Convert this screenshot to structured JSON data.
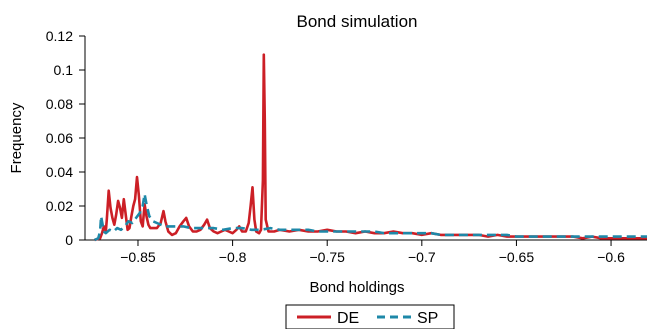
{
  "chart_data": {
    "type": "line",
    "title": "Bond simulation",
    "xlabel": "Bond holdings",
    "ylabel": "Frequency",
    "xlim": [
      -0.878,
      -0.581
    ],
    "ylim": [
      0,
      0.12
    ],
    "x_ticks": [
      -0.85,
      -0.8,
      -0.75,
      -0.7,
      -0.65,
      -0.6
    ],
    "x_tick_labels": [
      "−0.85",
      "−0.8",
      "−0.75",
      "−0.7",
      "−0.65",
      "−0.6"
    ],
    "y_ticks": [
      0,
      0.02,
      0.04,
      0.06,
      0.08,
      0.1,
      0.12
    ],
    "y_tick_labels": [
      "0",
      "0.02",
      "0.04",
      "0.06",
      "0.08",
      "0.1",
      "0.12"
    ],
    "grid": false,
    "legend_position": "bottom-center",
    "series": [
      {
        "name": "DE",
        "color": "#cc1f26",
        "style": "solid",
        "points": [
          [
            -0.873,
            0
          ],
          [
            -0.87,
            0.001
          ],
          [
            -0.869,
            0.004
          ],
          [
            -0.868,
            0.008
          ],
          [
            -0.867,
            0.005
          ],
          [
            -0.8665,
            0.012
          ],
          [
            -0.8655,
            0.029
          ],
          [
            -0.8645,
            0.019
          ],
          [
            -0.8635,
            0.013
          ],
          [
            -0.8625,
            0.009
          ],
          [
            -0.8615,
            0.015
          ],
          [
            -0.8605,
            0.023
          ],
          [
            -0.8595,
            0.019
          ],
          [
            -0.8585,
            0.013
          ],
          [
            -0.8575,
            0.024
          ],
          [
            -0.8565,
            0.015
          ],
          [
            -0.8555,
            0.006
          ],
          [
            -0.8545,
            0.007
          ],
          [
            -0.8535,
            0.014
          ],
          [
            -0.8525,
            0.02
          ],
          [
            -0.8515,
            0.024
          ],
          [
            -0.8505,
            0.037
          ],
          [
            -0.8495,
            0.026
          ],
          [
            -0.8485,
            0.011
          ],
          [
            -0.8475,
            0.008
          ],
          [
            -0.8465,
            0.021
          ],
          [
            -0.8455,
            0.014
          ],
          [
            -0.8445,
            0.009
          ],
          [
            -0.8435,
            0.007
          ],
          [
            -0.842,
            0.007
          ],
          [
            -0.84,
            0.007
          ],
          [
            -0.838,
            0.01
          ],
          [
            -0.8365,
            0.017
          ],
          [
            -0.8355,
            0.011
          ],
          [
            -0.834,
            0.005
          ],
          [
            -0.832,
            0.003
          ],
          [
            -0.83,
            0.004
          ],
          [
            -0.828,
            0.008
          ],
          [
            -0.826,
            0.011
          ],
          [
            -0.8245,
            0.013
          ],
          [
            -0.823,
            0.008
          ],
          [
            -0.821,
            0.005
          ],
          [
            -0.819,
            0.005
          ],
          [
            -0.817,
            0.006
          ],
          [
            -0.815,
            0.009
          ],
          [
            -0.8135,
            0.012
          ],
          [
            -0.812,
            0.007
          ],
          [
            -0.81,
            0.005
          ],
          [
            -0.808,
            0.004
          ],
          [
            -0.806,
            0.005
          ],
          [
            -0.804,
            0.006
          ],
          [
            -0.802,
            0.005
          ],
          [
            -0.8,
            0.004
          ],
          [
            -0.798,
            0.006
          ],
          [
            -0.7965,
            0.008
          ],
          [
            -0.795,
            0.005
          ],
          [
            -0.793,
            0.005
          ],
          [
            -0.7915,
            0.01
          ],
          [
            -0.7905,
            0.02
          ],
          [
            -0.7895,
            0.031
          ],
          [
            -0.7885,
            0.012
          ],
          [
            -0.7875,
            0.005
          ],
          [
            -0.786,
            0.004
          ],
          [
            -0.785,
            0.006
          ],
          [
            -0.784,
            0.035
          ],
          [
            -0.7835,
            0.109
          ],
          [
            -0.783,
            0.07
          ],
          [
            -0.7825,
            0.012
          ],
          [
            -0.781,
            0.005
          ],
          [
            -0.778,
            0.005
          ],
          [
            -0.775,
            0.006
          ],
          [
            -0.77,
            0.005
          ],
          [
            -0.765,
            0.006
          ],
          [
            -0.76,
            0.005
          ],
          [
            -0.755,
            0.005
          ],
          [
            -0.75,
            0.006
          ],
          [
            -0.745,
            0.005
          ],
          [
            -0.74,
            0.005
          ],
          [
            -0.735,
            0.004
          ],
          [
            -0.73,
            0.005
          ],
          [
            -0.725,
            0.004
          ],
          [
            -0.72,
            0.004
          ],
          [
            -0.715,
            0.005
          ],
          [
            -0.71,
            0.004
          ],
          [
            -0.705,
            0.004
          ],
          [
            -0.7,
            0.003
          ],
          [
            -0.695,
            0.004
          ],
          [
            -0.69,
            0.003
          ],
          [
            -0.685,
            0.003
          ],
          [
            -0.68,
            0.003
          ],
          [
            -0.675,
            0.003
          ],
          [
            -0.67,
            0.003
          ],
          [
            -0.665,
            0.002
          ],
          [
            -0.66,
            0.003
          ],
          [
            -0.655,
            0.002
          ],
          [
            -0.65,
            0.002
          ],
          [
            -0.645,
            0.002
          ],
          [
            -0.64,
            0.002
          ],
          [
            -0.635,
            0.002
          ],
          [
            -0.63,
            0.002
          ],
          [
            -0.625,
            0.002
          ],
          [
            -0.62,
            0.002
          ],
          [
            -0.615,
            0.001
          ],
          [
            -0.61,
            0.002
          ],
          [
            -0.605,
            0.001
          ],
          [
            -0.6,
            0.001
          ],
          [
            -0.595,
            0.001
          ],
          [
            -0.59,
            0.001
          ],
          [
            -0.585,
            0.001
          ],
          [
            -0.581,
            0.001
          ]
        ]
      },
      {
        "name": "SP",
        "color": "#1e88a8",
        "style": "dashed",
        "points": [
          [
            -0.873,
            0
          ],
          [
            -0.871,
            0.001
          ],
          [
            -0.87,
            0.005
          ],
          [
            -0.8695,
            0.014
          ],
          [
            -0.869,
            0.011
          ],
          [
            -0.868,
            0.005
          ],
          [
            -0.867,
            0.004
          ],
          [
            -0.865,
            0.006
          ],
          [
            -0.863,
            0.005
          ],
          [
            -0.861,
            0.007
          ],
          [
            -0.859,
            0.006
          ],
          [
            -0.857,
            0.008
          ],
          [
            -0.855,
            0.011
          ],
          [
            -0.853,
            0.01
          ],
          [
            -0.851,
            0.013
          ],
          [
            -0.849,
            0.016
          ],
          [
            -0.8475,
            0.02
          ],
          [
            -0.8465,
            0.027
          ],
          [
            -0.8455,
            0.021
          ],
          [
            -0.844,
            0.014
          ],
          [
            -0.842,
            0.011
          ],
          [
            -0.84,
            0.01
          ],
          [
            -0.838,
            0.009
          ],
          [
            -0.836,
            0.008
          ],
          [
            -0.834,
            0.008
          ],
          [
            -0.83,
            0.008
          ],
          [
            -0.826,
            0.008
          ],
          [
            -0.822,
            0.007
          ],
          [
            -0.818,
            0.007
          ],
          [
            -0.814,
            0.007
          ],
          [
            -0.81,
            0.007
          ],
          [
            -0.805,
            0.006
          ],
          [
            -0.8,
            0.007
          ],
          [
            -0.795,
            0.007
          ],
          [
            -0.79,
            0.006
          ],
          [
            -0.785,
            0.006
          ],
          [
            -0.78,
            0.007
          ],
          [
            -0.775,
            0.006
          ],
          [
            -0.77,
            0.006
          ],
          [
            -0.765,
            0.006
          ],
          [
            -0.76,
            0.006
          ],
          [
            -0.755,
            0.005
          ],
          [
            -0.75,
            0.005
          ],
          [
            -0.745,
            0.005
          ],
          [
            -0.74,
            0.005
          ],
          [
            -0.735,
            0.005
          ],
          [
            -0.73,
            0.005
          ],
          [
            -0.725,
            0.005
          ],
          [
            -0.72,
            0.004
          ],
          [
            -0.715,
            0.004
          ],
          [
            -0.71,
            0.004
          ],
          [
            -0.705,
            0.004
          ],
          [
            -0.7,
            0.004
          ],
          [
            -0.695,
            0.004
          ],
          [
            -0.69,
            0.003
          ],
          [
            -0.685,
            0.003
          ],
          [
            -0.68,
            0.003
          ],
          [
            -0.675,
            0.003
          ],
          [
            -0.67,
            0.003
          ],
          [
            -0.665,
            0.003
          ],
          [
            -0.66,
            0.003
          ],
          [
            -0.655,
            0.003
          ],
          [
            -0.65,
            0.002
          ],
          [
            -0.645,
            0.002
          ],
          [
            -0.64,
            0.002
          ],
          [
            -0.635,
            0.002
          ],
          [
            -0.63,
            0.002
          ],
          [
            -0.625,
            0.002
          ],
          [
            -0.62,
            0.002
          ],
          [
            -0.615,
            0.002
          ],
          [
            -0.61,
            0.002
          ],
          [
            -0.605,
            0.002
          ],
          [
            -0.6,
            0.002
          ],
          [
            -0.595,
            0.002
          ],
          [
            -0.59,
            0.002
          ],
          [
            -0.585,
            0.002
          ],
          [
            -0.581,
            0.002
          ]
        ]
      }
    ]
  }
}
